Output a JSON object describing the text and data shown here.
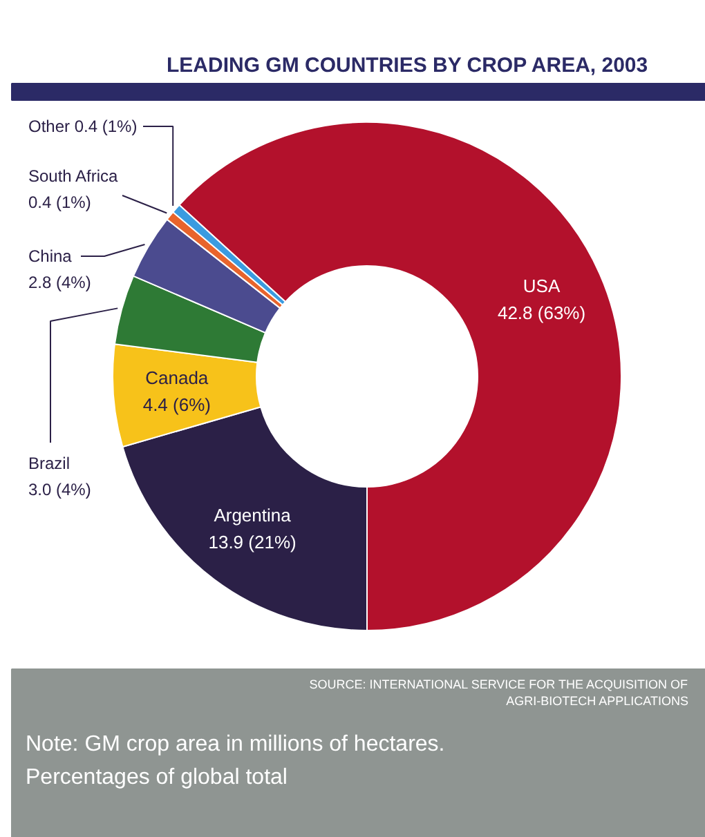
{
  "chart_data": {
    "type": "donut",
    "title": "LEADING GM COUNTRIES BY CROP AREA, 2003",
    "categories": [
      "USA",
      "Argentina",
      "Canada",
      "Brazil",
      "China",
      "South Africa",
      "Other"
    ],
    "values": [
      42.8,
      13.9,
      4.4,
      3.0,
      2.8,
      0.4,
      0.4
    ],
    "value_labels": [
      "42.8 (63%)",
      "13.9 (21%)",
      "4.4 (6%)",
      "3.0 (4%)",
      "2.8 (4%)",
      "0.4 (1%)",
      "0.4 (1%)"
    ],
    "colors": [
      "#b3112c",
      "#2b2047",
      "#f7c21a",
      "#2e7a35",
      "#4b4b8f",
      "#e8642c",
      "#3a9be0"
    ],
    "legend": false,
    "annotations": [
      "SOURCE: INTERNATIONAL SERVICE FOR THE ACQUISITION OF\nAGRI-BIOTECH APPLICATIONS",
      "Note:  GM crop area in millions of hectares.\n          Percentages of global total"
    ]
  }
}
